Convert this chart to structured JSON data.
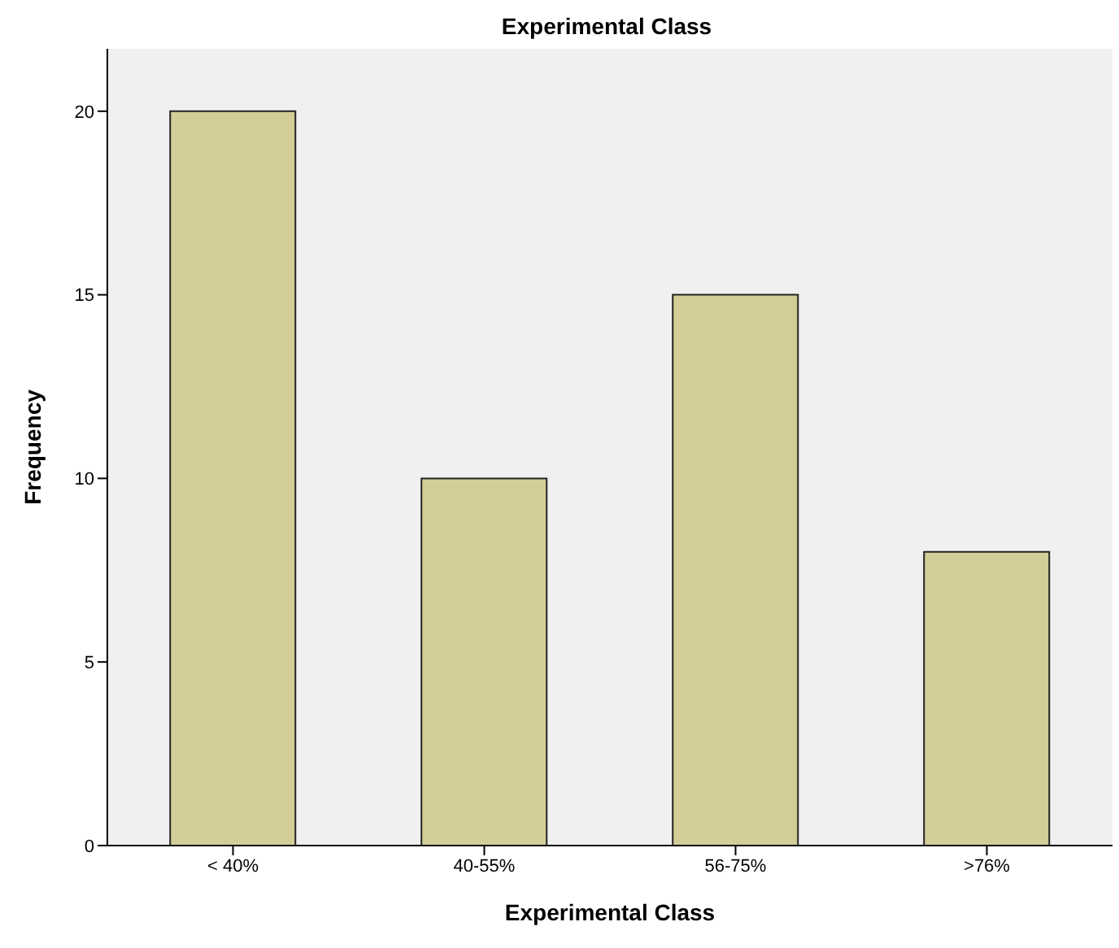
{
  "chart_data": {
    "type": "bar",
    "title": "Experimental Class",
    "xlabel": "Experimental Class",
    "ylabel": "Frequency",
    "categories": [
      "< 40%",
      "40-55%",
      "56-75%",
      ">76%"
    ],
    "values": [
      20,
      10,
      15,
      8
    ],
    "color": "#d3ce97",
    "ylim": [
      0,
      21.7
    ],
    "yticks": [
      0,
      5,
      10,
      15,
      20
    ],
    "grid": false
  }
}
